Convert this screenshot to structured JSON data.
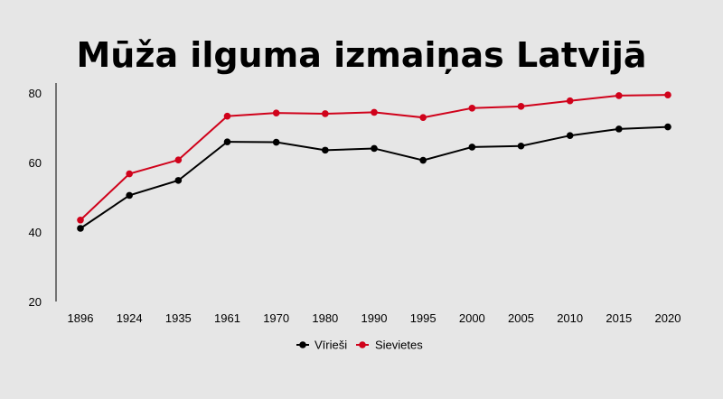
{
  "chart_data": {
    "type": "line",
    "title": "Mūža ilguma izmaiņas Latvijā",
    "categories": [
      "1896",
      "1924",
      "1935",
      "1961",
      "1970",
      "1980",
      "1990",
      "1995",
      "2000",
      "2005",
      "2010",
      "2015",
      "2020"
    ],
    "series": [
      {
        "name": "Vīrieši",
        "color": "#000000",
        "values": [
          41.3,
          50.8,
          55.1,
          66.2,
          66.1,
          63.8,
          64.3,
          60.9,
          64.7,
          65.0,
          68.0,
          69.9,
          70.5
        ]
      },
      {
        "name": "Sievietes",
        "color": "#d0021b",
        "values": [
          43.7,
          57.0,
          61.0,
          73.6,
          74.5,
          74.3,
          74.7,
          73.2,
          75.9,
          76.4,
          78.0,
          79.5,
          79.7
        ]
      }
    ],
    "yticks": [
      "80",
      "60",
      "40",
      "20"
    ],
    "ylim": [
      20,
      80
    ],
    "legend_position": "bottom-center"
  }
}
